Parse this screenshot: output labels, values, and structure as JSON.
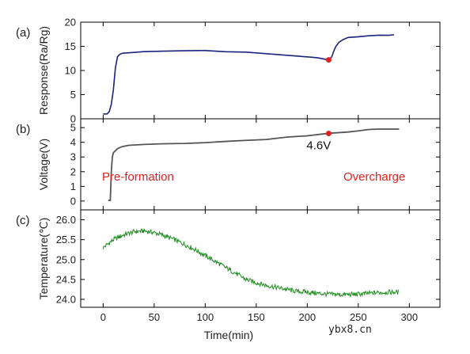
{
  "chart_data": [
    {
      "type": "line",
      "panel_label": "(a)",
      "ylabel": "Response(Ra/Rg)",
      "xlim": [
        -22,
        330
      ],
      "ylim": [
        0,
        20
      ],
      "yticks": [
        0,
        5,
        10,
        15,
        20
      ],
      "color": "#1a237e",
      "series": [
        {
          "x": [
            0,
            4,
            6,
            8,
            10,
            12,
            14,
            16,
            18,
            20,
            25,
            40,
            60,
            80,
            100,
            120,
            140,
            160,
            180,
            200,
            210,
            215,
            221,
            224,
            226,
            228,
            231,
            235,
            240,
            250,
            260,
            270,
            280,
            285
          ],
          "y": [
            1.0,
            1.0,
            1.5,
            3.0,
            6.0,
            10.5,
            12.8,
            13.3,
            13.5,
            13.6,
            13.7,
            13.9,
            14.0,
            14.1,
            14.1,
            13.9,
            13.8,
            13.5,
            13.1,
            12.8,
            12.6,
            12.4,
            12.2,
            12.8,
            14.0,
            15.0,
            15.8,
            16.4,
            16.8,
            17.0,
            17.2,
            17.3,
            17.3,
            17.4
          ]
        }
      ],
      "markers": [
        {
          "x": 221,
          "y": 12.2,
          "color": "#e02020"
        }
      ]
    },
    {
      "type": "line",
      "panel_label": "(b)",
      "ylabel": "Voltage(V)",
      "xlim": [
        -22,
        330
      ],
      "ylim": [
        -0.6,
        5.6
      ],
      "yticks": [
        0,
        1,
        2,
        3,
        4,
        5
      ],
      "color": "#555555",
      "series": [
        {
          "x": [
            5,
            7,
            8,
            9,
            10,
            14,
            18,
            25,
            40,
            60,
            80,
            100,
            120,
            140,
            160,
            180,
            200,
            221,
            240,
            250,
            258,
            262,
            270,
            290
          ],
          "y": [
            0.05,
            0.05,
            2.0,
            3.0,
            3.3,
            3.55,
            3.7,
            3.8,
            3.85,
            3.9,
            3.92,
            3.98,
            4.05,
            4.12,
            4.2,
            4.35,
            4.45,
            4.6,
            4.7,
            4.78,
            4.85,
            4.88,
            4.9,
            4.9
          ]
        }
      ],
      "markers": [
        {
          "x": 221,
          "y": 4.6,
          "color": "#e02020"
        }
      ],
      "annotations": {
        "marker_label": "4.6V",
        "left_phase": "Pre-formation",
        "right_phase": "Overcharge"
      }
    },
    {
      "type": "line",
      "panel_label": "(c)",
      "ylabel": "Temperature(℃)",
      "xlabel": "Time(min)",
      "xlim": [
        -22,
        330
      ],
      "xticks": [
        0,
        50,
        100,
        150,
        200,
        250,
        300
      ],
      "ylim": [
        23.8,
        26.25
      ],
      "yticks": [
        24.0,
        24.5,
        25.0,
        25.5,
        26.0
      ],
      "color": "#1e8c1e",
      "series": [
        {
          "x": [
            0,
            10,
            20,
            30,
            40,
            50,
            60,
            70,
            80,
            90,
            100,
            110,
            120,
            130,
            140,
            150,
            160,
            170,
            180,
            190,
            200,
            210,
            220,
            230,
            240,
            250,
            260,
            270,
            280,
            290
          ],
          "y": [
            25.3,
            25.5,
            25.62,
            25.7,
            25.72,
            25.68,
            25.6,
            25.5,
            25.38,
            25.25,
            25.1,
            24.95,
            24.8,
            24.65,
            24.5,
            24.42,
            24.35,
            24.3,
            24.25,
            24.2,
            24.18,
            24.15,
            24.13,
            24.12,
            24.12,
            24.13,
            24.15,
            24.17,
            24.18,
            24.18
          ]
        }
      ],
      "noise_amplitude": 0.06
    }
  ],
  "watermark": "ybx8.cn"
}
